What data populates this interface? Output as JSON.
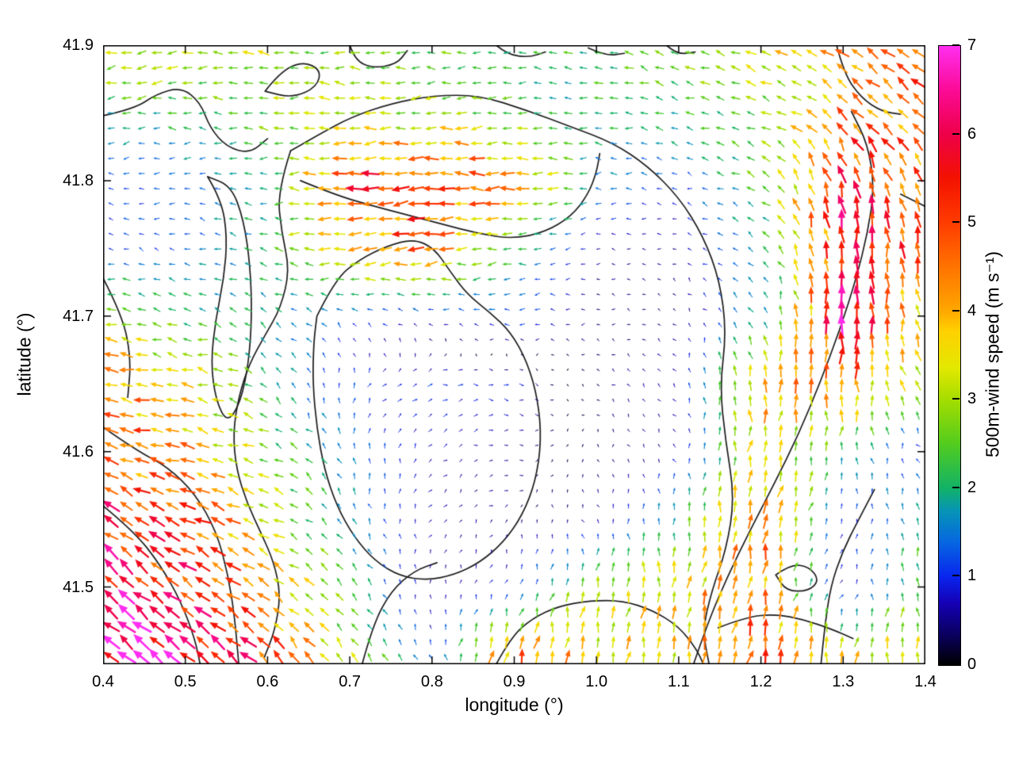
{
  "figure": {
    "background": "#ffffff"
  },
  "chart_data": {
    "type": "quiver",
    "title": "",
    "xlabel": "longitude (°)",
    "ylabel": "latitude (°)",
    "xlim": [
      0.4,
      1.4
    ],
    "ylim": [
      41.443,
      41.9
    ],
    "grid": false,
    "frame_color": "#000000",
    "contour_color": "#1c1c1c",
    "x_ticks": [
      "0.4",
      "0.5",
      "0.6",
      "0.7",
      "0.8",
      "0.9",
      "1.0",
      "1.1",
      "1.2",
      "1.3",
      "1.4"
    ],
    "x_tick_values": [
      0.4,
      0.5,
      0.6,
      0.7,
      0.8,
      0.9,
      1.0,
      1.1,
      1.2,
      1.3,
      1.4
    ],
    "y_ticks": [
      "41.5",
      "41.6",
      "41.7",
      "41.8",
      "41.9"
    ],
    "y_tick_values": [
      41.5,
      41.6,
      41.7,
      41.8,
      41.9
    ],
    "colorbar": {
      "label": "500m-wind speed (m s⁻¹)",
      "min": 0,
      "max": 7,
      "ticks": [
        "0",
        "1",
        "2",
        "3",
        "4",
        "5",
        "6",
        "7"
      ],
      "tick_values": [
        0,
        1,
        2,
        3,
        4,
        5,
        6,
        7
      ],
      "colormap_stops": [
        [
          0.0,
          "#000000"
        ],
        [
          0.05,
          "#0a0060"
        ],
        [
          0.1,
          "#1500b5"
        ],
        [
          0.143,
          "#0925ee"
        ],
        [
          0.2,
          "#0668e0"
        ],
        [
          0.25,
          "#0795b5"
        ],
        [
          0.286,
          "#12b266"
        ],
        [
          0.357,
          "#52cc1e"
        ],
        [
          0.429,
          "#a5dd00"
        ],
        [
          0.48,
          "#e3e800"
        ],
        [
          0.54,
          "#ffd000"
        ],
        [
          0.571,
          "#ffa800"
        ],
        [
          0.643,
          "#ff7300"
        ],
        [
          0.714,
          "#ff3c00"
        ],
        [
          0.786,
          "#f31200"
        ],
        [
          0.857,
          "#ee0048"
        ],
        [
          0.929,
          "#fb0b96"
        ],
        [
          1.0,
          "#ff2ef0"
        ]
      ]
    },
    "quiver_density": {
      "nx": 54,
      "ny": 41
    },
    "wind_field": {
      "units": "m s⁻¹",
      "lons": [
        0.4,
        0.5,
        0.6,
        0.7,
        0.8,
        0.9,
        1.0,
        1.1,
        1.2,
        1.3,
        1.4
      ],
      "lats": [
        41.45,
        41.5,
        41.55,
        41.6,
        41.65,
        41.7,
        41.75,
        41.8,
        41.85,
        41.9
      ],
      "u": [
        [
          -5.0,
          -5.0,
          -3.5,
          -1.5,
          -0.3,
          1.0,
          0.5,
          0.5,
          1.0,
          0.5,
          0.0
        ],
        [
          -4.5,
          -4.5,
          -3.5,
          -1.5,
          0.0,
          0.3,
          0.3,
          0.5,
          0.8,
          0.3,
          0.0
        ],
        [
          -4.5,
          -4.5,
          -3.0,
          -0.8,
          0.3,
          0.3,
          -0.3,
          0.0,
          0.5,
          0.3,
          -0.5
        ],
        [
          -4.5,
          -4.0,
          -2.5,
          -0.5,
          0.5,
          0.5,
          0.0,
          -0.3,
          0.5,
          0.0,
          -0.5
        ],
        [
          -4.5,
          -3.5,
          -1.5,
          0.5,
          1.0,
          0.8,
          -0.3,
          -0.5,
          0.0,
          0.5,
          -1.5
        ],
        [
          -3.0,
          -2.0,
          -1.5,
          -1.0,
          -0.8,
          -1.2,
          -0.4,
          -0.3,
          -1.0,
          0.5,
          -1.0
        ],
        [
          -1.0,
          -1.2,
          -2.0,
          -4.0,
          -4.5,
          -2.0,
          -0.5,
          -0.4,
          -1.5,
          -0.5,
          -1.0
        ],
        [
          -1.0,
          -1.2,
          -2.0,
          -5.0,
          -5.2,
          -4.5,
          -1.5,
          -1.0,
          -2.0,
          -1.5,
          -2.0
        ],
        [
          -2.0,
          -2.2,
          -2.5,
          -3.0,
          -2.8,
          -2.2,
          -2.0,
          -2.0,
          -2.5,
          -3.0,
          -3.5
        ],
        [
          -3.5,
          -3.3,
          -3.0,
          -2.5,
          -2.5,
          -2.0,
          -2.2,
          -2.5,
          -3.0,
          -3.5,
          -3.8
        ]
      ],
      "v": [
        [
          4.5,
          4.0,
          3.5,
          2.5,
          1.0,
          4.5,
          3.5,
          3.5,
          4.5,
          3.5,
          3.5
        ],
        [
          4.0,
          3.0,
          2.5,
          1.5,
          0.5,
          0.8,
          3.0,
          3.5,
          4.5,
          0.5,
          2.5
        ],
        [
          3.0,
          2.0,
          1.5,
          1.5,
          0.5,
          0.3,
          0.5,
          2.0,
          4.5,
          0.8,
          2.0
        ],
        [
          1.5,
          1.0,
          1.0,
          1.5,
          0.5,
          0.0,
          0.3,
          0.5,
          3.5,
          2.0,
          0.5
        ],
        [
          0.5,
          0.5,
          1.5,
          1.0,
          0.3,
          -0.3,
          0.2,
          0.5,
          4.0,
          4.5,
          2.5
        ],
        [
          0.5,
          0.8,
          1.0,
          0.5,
          0.5,
          0.0,
          0.1,
          0.2,
          1.5,
          6.0,
          3.5
        ],
        [
          0.3,
          0.3,
          0.5,
          -0.5,
          -0.5,
          -0.3,
          0.0,
          0.2,
          1.0,
          5.5,
          4.5
        ],
        [
          0.0,
          0.0,
          0.0,
          0.0,
          0.0,
          0.0,
          0.0,
          0.2,
          1.5,
          5.5,
          4.0
        ],
        [
          -0.5,
          0.0,
          0.5,
          0.0,
          -0.3,
          0.0,
          0.3,
          0.5,
          1.0,
          3.0,
          3.0
        ],
        [
          -0.5,
          0.0,
          0.3,
          0.0,
          0.2,
          0.0,
          0.5,
          0.8,
          1.5,
          2.0,
          2.5
        ]
      ]
    },
    "contours": [
      {
        "pts": [
          [
            0.4,
            41.848
          ],
          [
            0.438,
            41.853
          ],
          [
            0.465,
            41.864
          ],
          [
            0.495,
            41.869
          ],
          [
            0.518,
            41.858
          ],
          [
            0.53,
            41.839
          ],
          [
            0.55,
            41.825
          ],
          [
            0.578,
            41.82
          ],
          [
            0.6,
            41.831
          ]
        ]
      },
      {
        "pts": [
          [
            0.597,
            41.866
          ],
          [
            0.615,
            41.88
          ],
          [
            0.642,
            41.888
          ],
          [
            0.665,
            41.882
          ],
          [
            0.66,
            41.869
          ],
          [
            0.63,
            41.861
          ],
          [
            0.597,
            41.866
          ]
        ]
      },
      {
        "pts": [
          [
            0.7,
            41.9
          ],
          [
            0.706,
            41.889
          ],
          [
            0.728,
            41.883
          ],
          [
            0.757,
            41.886
          ],
          [
            0.77,
            41.896
          ]
        ]
      },
      {
        "pts": [
          [
            0.878,
            41.9
          ],
          [
            0.892,
            41.893
          ],
          [
            0.918,
            41.891
          ],
          [
            0.938,
            41.895
          ]
        ]
      },
      {
        "pts": [
          [
            0.99,
            41.898
          ],
          [
            1.012,
            41.892
          ],
          [
            1.034,
            41.894
          ]
        ]
      },
      {
        "pts": [
          [
            1.085,
            41.9
          ],
          [
            1.098,
            41.893
          ],
          [
            1.12,
            41.895
          ]
        ]
      },
      {
        "pts": [
          [
            0.628,
            41.822
          ],
          [
            0.662,
            41.834
          ],
          [
            0.702,
            41.847
          ],
          [
            0.75,
            41.857
          ],
          [
            0.802,
            41.863
          ],
          [
            0.858,
            41.863
          ],
          [
            0.915,
            41.852
          ],
          [
            0.968,
            41.84
          ],
          [
            1.02,
            41.828
          ],
          [
            1.062,
            41.811
          ],
          [
            1.1,
            41.788
          ],
          [
            1.13,
            41.759
          ],
          [
            1.15,
            41.726
          ],
          [
            1.158,
            41.688
          ],
          [
            1.15,
            41.648
          ],
          [
            1.157,
            41.608
          ],
          [
            1.168,
            41.566
          ],
          [
            1.158,
            41.528
          ],
          [
            1.14,
            41.497
          ],
          [
            1.129,
            41.468
          ],
          [
            1.137,
            41.443
          ]
        ]
      },
      {
        "pts": [
          [
            0.628,
            41.822
          ],
          [
            0.612,
            41.792
          ],
          [
            0.617,
            41.762
          ],
          [
            0.627,
            41.734
          ],
          [
            0.616,
            41.706
          ],
          [
            0.597,
            41.686
          ],
          [
            0.578,
            41.665
          ],
          [
            0.565,
            41.641
          ],
          [
            0.558,
            41.614
          ],
          [
            0.562,
            41.587
          ],
          [
            0.575,
            41.562
          ],
          [
            0.592,
            41.54
          ],
          [
            0.608,
            41.518
          ],
          [
            0.616,
            41.494
          ],
          [
            0.609,
            41.468
          ],
          [
            0.596,
            41.448
          ]
        ]
      },
      {
        "pts": [
          [
            0.66,
            41.7
          ],
          [
            0.682,
            41.727
          ],
          [
            0.712,
            41.742
          ],
          [
            0.746,
            41.752
          ],
          [
            0.778,
            41.757
          ],
          [
            0.803,
            41.75
          ],
          [
            0.822,
            41.733
          ],
          [
            0.843,
            41.716
          ],
          [
            0.87,
            41.703
          ],
          [
            0.896,
            41.688
          ],
          [
            0.916,
            41.666
          ],
          [
            0.929,
            41.638
          ],
          [
            0.933,
            41.608
          ],
          [
            0.926,
            41.578
          ],
          [
            0.91,
            41.553
          ],
          [
            0.887,
            41.533
          ],
          [
            0.858,
            41.518
          ],
          [
            0.827,
            41.509
          ],
          [
            0.794,
            41.505
          ],
          [
            0.761,
            41.508
          ],
          [
            0.731,
            41.519
          ],
          [
            0.705,
            41.537
          ],
          [
            0.684,
            41.56
          ],
          [
            0.669,
            41.587
          ],
          [
            0.66,
            41.617
          ],
          [
            0.655,
            41.65
          ],
          [
            0.656,
            41.68
          ],
          [
            0.66,
            41.7
          ]
        ]
      },
      {
        "pts": [
          [
            0.527,
            41.803
          ],
          [
            0.544,
            41.786
          ],
          [
            0.551,
            41.758
          ],
          [
            0.547,
            41.728
          ],
          [
            0.537,
            41.698
          ],
          [
            0.531,
            41.666
          ],
          [
            0.537,
            41.638
          ],
          [
            0.551,
            41.621
          ],
          [
            0.567,
            41.636
          ],
          [
            0.577,
            41.665
          ],
          [
            0.581,
            41.7
          ],
          [
            0.579,
            41.737
          ],
          [
            0.571,
            41.771
          ],
          [
            0.556,
            41.796
          ],
          [
            0.527,
            41.803
          ]
        ]
      },
      {
        "pts": [
          [
            0.4,
            41.728
          ],
          [
            0.424,
            41.7
          ],
          [
            0.434,
            41.668
          ],
          [
            0.43,
            41.64
          ]
        ]
      },
      {
        "pts": [
          [
            0.4,
            41.618
          ],
          [
            0.44,
            41.601
          ],
          [
            0.478,
            41.589
          ],
          [
            0.512,
            41.569
          ],
          [
            0.538,
            41.541
          ],
          [
            0.552,
            41.509
          ],
          [
            0.56,
            41.478
          ],
          [
            0.565,
            41.443
          ]
        ]
      },
      {
        "pts": [
          [
            0.4,
            41.56
          ],
          [
            0.438,
            41.541
          ],
          [
            0.47,
            41.516
          ],
          [
            0.495,
            41.489
          ],
          [
            0.512,
            41.461
          ],
          [
            0.518,
            41.443
          ]
        ]
      },
      {
        "pts": [
          [
            0.64,
            41.8
          ],
          [
            0.68,
            41.79
          ],
          [
            0.724,
            41.782
          ],
          [
            0.768,
            41.775
          ],
          [
            0.812,
            41.768
          ],
          [
            0.856,
            41.761
          ],
          [
            0.898,
            41.757
          ],
          [
            0.938,
            41.762
          ],
          [
            0.97,
            41.774
          ],
          [
            0.99,
            41.79
          ],
          [
            1.0,
            41.806
          ],
          [
            1.004,
            41.82
          ]
        ]
      },
      {
        "pts": [
          [
            1.118,
            41.443
          ],
          [
            1.135,
            41.473
          ],
          [
            1.158,
            41.506
          ],
          [
            1.186,
            41.541
          ],
          [
            1.216,
            41.576
          ],
          [
            1.246,
            41.613
          ],
          [
            1.272,
            41.651
          ],
          [
            1.296,
            41.69
          ],
          [
            1.316,
            41.728
          ],
          [
            1.33,
            41.762
          ],
          [
            1.338,
            41.795
          ],
          [
            1.33,
            41.827
          ],
          [
            1.31,
            41.851
          ]
        ]
      },
      {
        "pts": [
          [
            1.338,
            41.572
          ],
          [
            1.318,
            41.549
          ],
          [
            1.299,
            41.526
          ],
          [
            1.285,
            41.501
          ],
          [
            1.278,
            41.473
          ],
          [
            1.273,
            41.443
          ]
        ]
      },
      {
        "pts": [
          [
            1.218,
            41.509
          ],
          [
            1.236,
            41.517
          ],
          [
            1.259,
            41.515
          ],
          [
            1.271,
            41.505
          ],
          [
            1.258,
            41.497
          ],
          [
            1.231,
            41.497
          ],
          [
            1.218,
            41.509
          ]
        ]
      },
      {
        "pts": [
          [
            1.292,
            41.9
          ],
          [
            1.301,
            41.879
          ],
          [
            1.322,
            41.861
          ],
          [
            1.347,
            41.851
          ],
          [
            1.37,
            41.849
          ]
        ]
      },
      {
        "pts": [
          [
            1.37,
            41.79
          ],
          [
            1.4,
            41.781
          ]
        ]
      },
      {
        "pts": [
          [
            0.878,
            41.443
          ],
          [
            0.896,
            41.463
          ],
          [
            0.922,
            41.477
          ],
          [
            0.954,
            41.486
          ],
          [
            0.992,
            41.49
          ],
          [
            1.032,
            41.49
          ],
          [
            1.068,
            41.483
          ],
          [
            1.1,
            41.471
          ],
          [
            1.122,
            41.454
          ],
          [
            1.13,
            41.443
          ]
        ]
      },
      {
        "pts": [
          [
            1.148,
            41.47
          ],
          [
            1.182,
            41.478
          ],
          [
            1.218,
            41.48
          ],
          [
            1.252,
            41.476
          ],
          [
            1.286,
            41.469
          ],
          [
            1.312,
            41.462
          ]
        ]
      },
      {
        "pts": [
          [
            0.715,
            41.443
          ],
          [
            0.728,
            41.472
          ],
          [
            0.75,
            41.497
          ],
          [
            0.778,
            41.512
          ],
          [
            0.806,
            41.518
          ]
        ]
      }
    ]
  }
}
